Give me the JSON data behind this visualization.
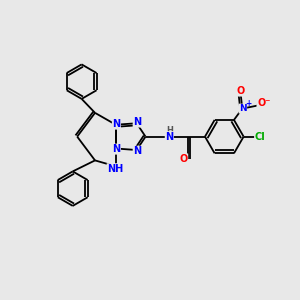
{
  "background_color": "#e8e8e8",
  "bond_color": "#000000",
  "atom_colors": {
    "N": "#0000ff",
    "O": "#ff0000",
    "Cl": "#00aa00",
    "C": "#000000",
    "H": "#555555"
  },
  "figsize": [
    3.0,
    3.0
  ],
  "dpi": 100
}
